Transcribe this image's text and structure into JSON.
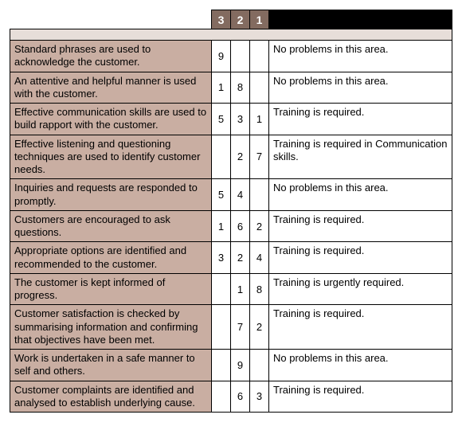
{
  "header": {
    "col3": "3",
    "col2": "2",
    "col1": "1"
  },
  "rows": [
    {
      "criterion": "Standard phrases are used to acknowledge the customer.",
      "s3": "9",
      "s2": "",
      "s1": "",
      "comment": "No problems in this area."
    },
    {
      "criterion": "An attentive and helpful manner is used with the customer.",
      "s3": "1",
      "s2": "8",
      "s1": "",
      "comment": "No problems in this area."
    },
    {
      "criterion": "Effective communication skills are used to build rapport with the customer.",
      "s3": "5",
      "s2": "3",
      "s1": "1",
      "comment": "Training is required."
    },
    {
      "criterion": "Effective listening and questioning techniques are used to identify customer needs.",
      "s3": "",
      "s2": "2",
      "s1": "7",
      "comment": "Training is required in Communication skills."
    },
    {
      "criterion": "Inquiries and requests are responded to promptly.",
      "s3": "5",
      "s2": "4",
      "s1": "",
      "comment": "No problems in this area."
    },
    {
      "criterion": "Customers are encouraged to ask questions.",
      "s3": "1",
      "s2": "6",
      "s1": "2",
      "comment": "Training is required."
    },
    {
      "criterion": "Appropriate options are identified and recommended to the customer.",
      "s3": "3",
      "s2": "2",
      "s1": "4",
      "comment": "Training is required."
    },
    {
      "criterion": "The customer is kept informed of progress.",
      "s3": "",
      "s2": "1",
      "s1": "8",
      "comment": "Training is urgently required."
    },
    {
      "criterion": "Customer satisfaction is checked by summarising information and confirming that objectives have been met.",
      "s3": "",
      "s2": "7",
      "s1": "2",
      "comment": "Training is required."
    },
    {
      "criterion": "Work is undertaken in a safe manner to self and others.",
      "s3": "",
      "s2": "9",
      "s1": "",
      "comment": "No problems in this area."
    },
    {
      "criterion": "Customer complaints are identified and analysed  to establish underlying cause.",
      "s3": "",
      "s2": "6",
      "s1": "3",
      "comment": "Training is required."
    }
  ]
}
